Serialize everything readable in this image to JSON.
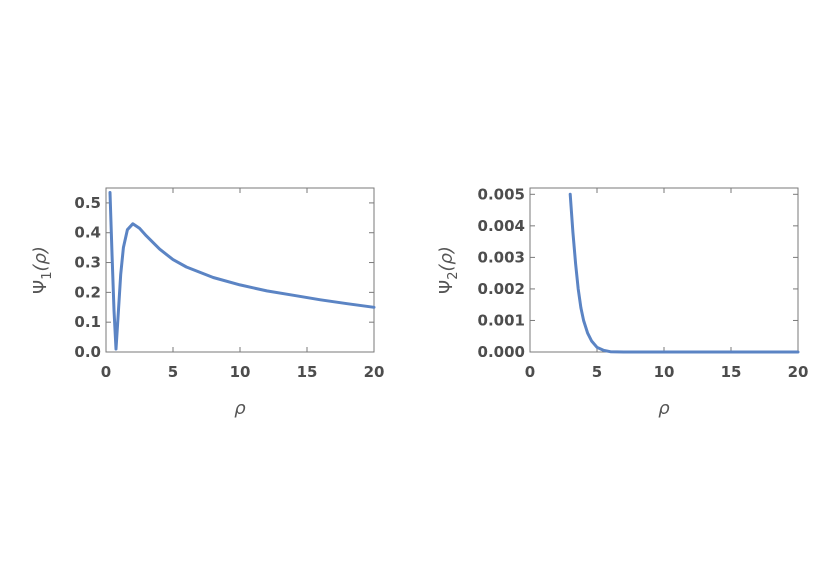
{
  "chart_data": [
    {
      "type": "line",
      "title": "",
      "xlabel": "ρ",
      "ylabel": {
        "base": "Ψ",
        "sub": "1",
        "arg": "(ρ)"
      },
      "xlim": [
        0,
        20
      ],
      "ylim": [
        0,
        0.55
      ],
      "xticks": [
        0,
        5,
        10,
        15,
        20
      ],
      "yticks": [
        0.0,
        0.1,
        0.2,
        0.3,
        0.4,
        0.5
      ],
      "ytick_labels": [
        "0.0",
        "0.1",
        "0.2",
        "0.3",
        "0.4",
        "0.5"
      ],
      "grid": false,
      "series": [
        {
          "color": "#5b84c4",
          "x": [
            0.3,
            0.45,
            0.6,
            0.75,
            0.9,
            1.1,
            1.3,
            1.6,
            2.0,
            2.5,
            3.0,
            4.0,
            5.0,
            6.0,
            8.0,
            10.0,
            12.0,
            14.0,
            16.0,
            18.0,
            20.0
          ],
          "y": [
            0.535,
            0.33,
            0.14,
            0.01,
            0.12,
            0.26,
            0.35,
            0.41,
            0.43,
            0.415,
            0.39,
            0.345,
            0.31,
            0.285,
            0.25,
            0.225,
            0.205,
            0.19,
            0.175,
            0.162,
            0.15
          ]
        }
      ]
    },
    {
      "type": "line",
      "title": "",
      "xlabel": "ρ",
      "ylabel": {
        "base": "Ψ",
        "sub": "2",
        "arg": "(ρ)"
      },
      "xlim": [
        0,
        20
      ],
      "ylim": [
        0,
        0.0052
      ],
      "xticks": [
        0,
        5,
        10,
        15,
        20
      ],
      "yticks": [
        0.0,
        0.001,
        0.002,
        0.003,
        0.004,
        0.005
      ],
      "ytick_labels": [
        "0.000",
        "0.001",
        "0.002",
        "0.003",
        "0.004",
        "0.005"
      ],
      "grid": false,
      "series": [
        {
          "color": "#5b84c4",
          "x": [
            3.0,
            3.2,
            3.4,
            3.6,
            3.8,
            4.0,
            4.3,
            4.6,
            5.0,
            5.5,
            6.0,
            7.0,
            8.0,
            10.0,
            15.0,
            20.0
          ],
          "y": [
            0.005,
            0.0038,
            0.0028,
            0.002,
            0.0014,
            0.001,
            0.0006,
            0.00035,
            0.00015,
            5e-05,
            1e-05,
            0.0,
            0.0,
            0.0,
            0.0,
            0.0
          ]
        }
      ]
    }
  ]
}
